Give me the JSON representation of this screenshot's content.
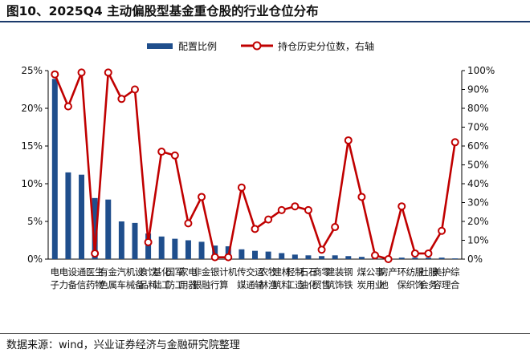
{
  "title": "图10、2025Q4 主动偏股型基金重仓股的行业仓位分布",
  "source": "数据来源：wind，兴业证券经济与金融研究院整理",
  "colors": {
    "bar": "#1f4e8c",
    "line": "#c00000",
    "marker_fill": "#ffffff",
    "axis": "#000000",
    "title_rule": "#1b3a6b"
  },
  "chart_data": {
    "type": "bar",
    "categories": [
      "电子",
      "电力设备",
      "通信",
      "医药生物",
      "有色金属",
      "汽车",
      "机械设备",
      "食品饮料",
      "基础化工",
      "国防军工",
      "家用电器",
      "非银金融",
      "银行",
      "计算机",
      "传媒",
      "交通运输",
      "农林牧渔",
      "建筑材料",
      "轻工制造",
      "石油石化",
      "商贸零售",
      "建筑装饰",
      "钢铁",
      "煤炭",
      "公用事业",
      "房地产",
      "环保",
      "纺织服饰",
      "社会服务",
      "美容护理",
      "综合"
    ],
    "series": [
      {
        "name": "配置比例",
        "type": "bar",
        "axis": "left",
        "values": [
          23.9,
          11.5,
          11.2,
          8.1,
          7.9,
          5.0,
          4.8,
          3.4,
          3.0,
          2.7,
          2.5,
          2.3,
          1.8,
          1.7,
          1.3,
          1.1,
          1.0,
          0.8,
          0.6,
          0.5,
          0.4,
          0.5,
          0.4,
          0.3,
          0.3,
          0.3,
          0.2,
          0.2,
          0.2,
          0.2,
          0.1
        ]
      },
      {
        "name": "持仓历史分位数，右轴",
        "type": "line",
        "axis": "right",
        "values": [
          98,
          81,
          99,
          3,
          99,
          85,
          90,
          9,
          57,
          55,
          19,
          33,
          1,
          1,
          38,
          16,
          21,
          26,
          28,
          26,
          5,
          17,
          63,
          33,
          2,
          0,
          28,
          3,
          3,
          15,
          62
        ]
      }
    ],
    "y_left": {
      "lim": [
        0,
        25
      ],
      "ticks": [
        "0%",
        "5%",
        "10%",
        "15%",
        "20%",
        "25%"
      ],
      "tick_values": [
        0,
        5,
        10,
        15,
        20,
        25
      ]
    },
    "y_right": {
      "lim": [
        0,
        100
      ],
      "ticks": [
        "0%",
        "10%",
        "20%",
        "30%",
        "40%",
        "50%",
        "60%",
        "70%",
        "80%",
        "90%",
        "100%"
      ],
      "tick_values": [
        0,
        10,
        20,
        30,
        40,
        50,
        60,
        70,
        80,
        90,
        100
      ]
    },
    "grid": false,
    "legend_position": "top"
  }
}
